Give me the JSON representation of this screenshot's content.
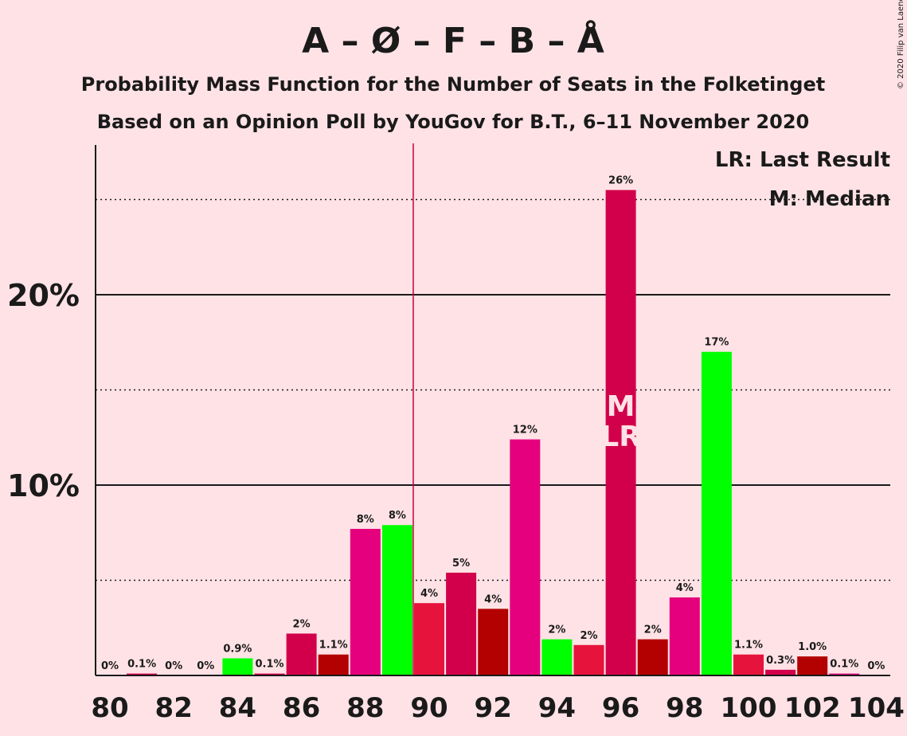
{
  "chart_data": {
    "type": "bar",
    "title": "A – Ø – F – B – Å",
    "subtitle": "Probability Mass Function for the Number of Seats in the Folketinget",
    "subtitle2": "Based on an Opinion Poll by YouGov for B.T., 6–11 November 2020",
    "copyright": "© 2020 Filip van Laenen",
    "legend": {
      "lr": "LR: Last Result",
      "m": "M: Median",
      "placement": "top-right"
    },
    "xlabel": "",
    "ylabel": "",
    "ylim": [
      0,
      27.5
    ],
    "x_ticks": [
      "80",
      "82",
      "84",
      "86",
      "88",
      "90",
      "92",
      "94",
      "96",
      "98",
      "100",
      "102",
      "104"
    ],
    "y_ticks": [
      "10%",
      "20%"
    ],
    "categories": [
      80,
      81,
      82,
      83,
      84,
      85,
      86,
      87,
      88,
      89,
      90,
      91,
      92,
      93,
      94,
      95,
      96,
      97,
      98,
      99,
      100,
      101,
      102,
      103,
      104
    ],
    "values": [
      0,
      0.1,
      0,
      0,
      0.9,
      0.1,
      2.2,
      1.1,
      7.7,
      7.9,
      3.8,
      5.4,
      3.5,
      12.4,
      1.9,
      1.6,
      25.5,
      1.9,
      4.1,
      17.0,
      1.1,
      0.3,
      1.0,
      0.1,
      0
    ],
    "labels": [
      "0%",
      "0.1%",
      "0%",
      "0%",
      "0.9%",
      "0.1%",
      "2%",
      "1.1%",
      "8%",
      "8%",
      "4%",
      "5%",
      "4%",
      "12%",
      "2%",
      "2%",
      "26%",
      "2%",
      "4%",
      "17%",
      "1.1%",
      "0.3%",
      "1.0%",
      "0.1%",
      "0%"
    ],
    "colors": [
      "#E5007D",
      "#D2004B",
      "#00FF00",
      "#00FF00",
      "#00FF00",
      "#D2004B",
      "#D2004B",
      "#B30000",
      "#E5007D",
      "#00FF00",
      "#E6133C",
      "#D2004B",
      "#B30000",
      "#E5007D",
      "#00FF00",
      "#E6133C",
      "#D2004B",
      "#B30000",
      "#E5007D",
      "#00FF00",
      "#E6133C",
      "#D2004B",
      "#B30000",
      "#E5007D",
      "#00FF00"
    ],
    "majority_line": 89.5,
    "median": 96,
    "last_result": 96,
    "bar_markers": {
      "m": "M",
      "lr": "LR"
    },
    "grid": true
  }
}
